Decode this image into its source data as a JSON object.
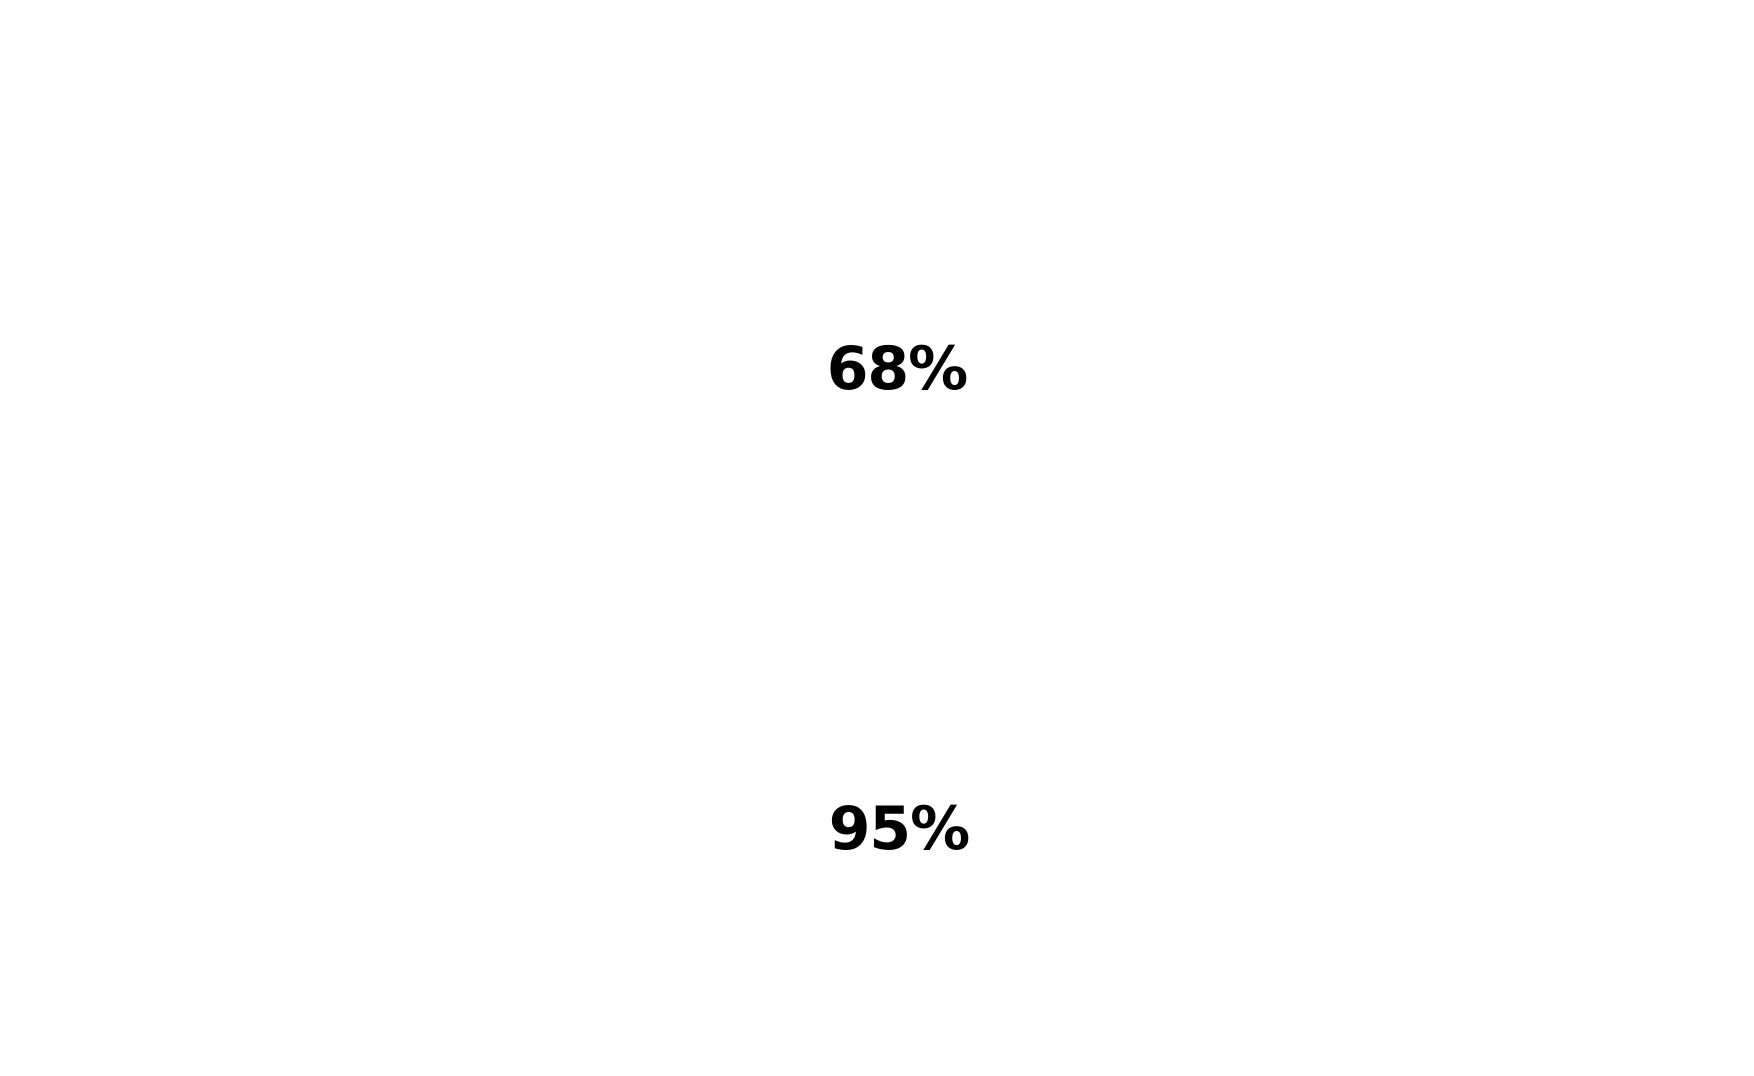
{
  "stats": {
    "first": "68%",
    "second": "95%"
  },
  "colors": {
    "background": "#ffffff",
    "text": "#000000"
  }
}
